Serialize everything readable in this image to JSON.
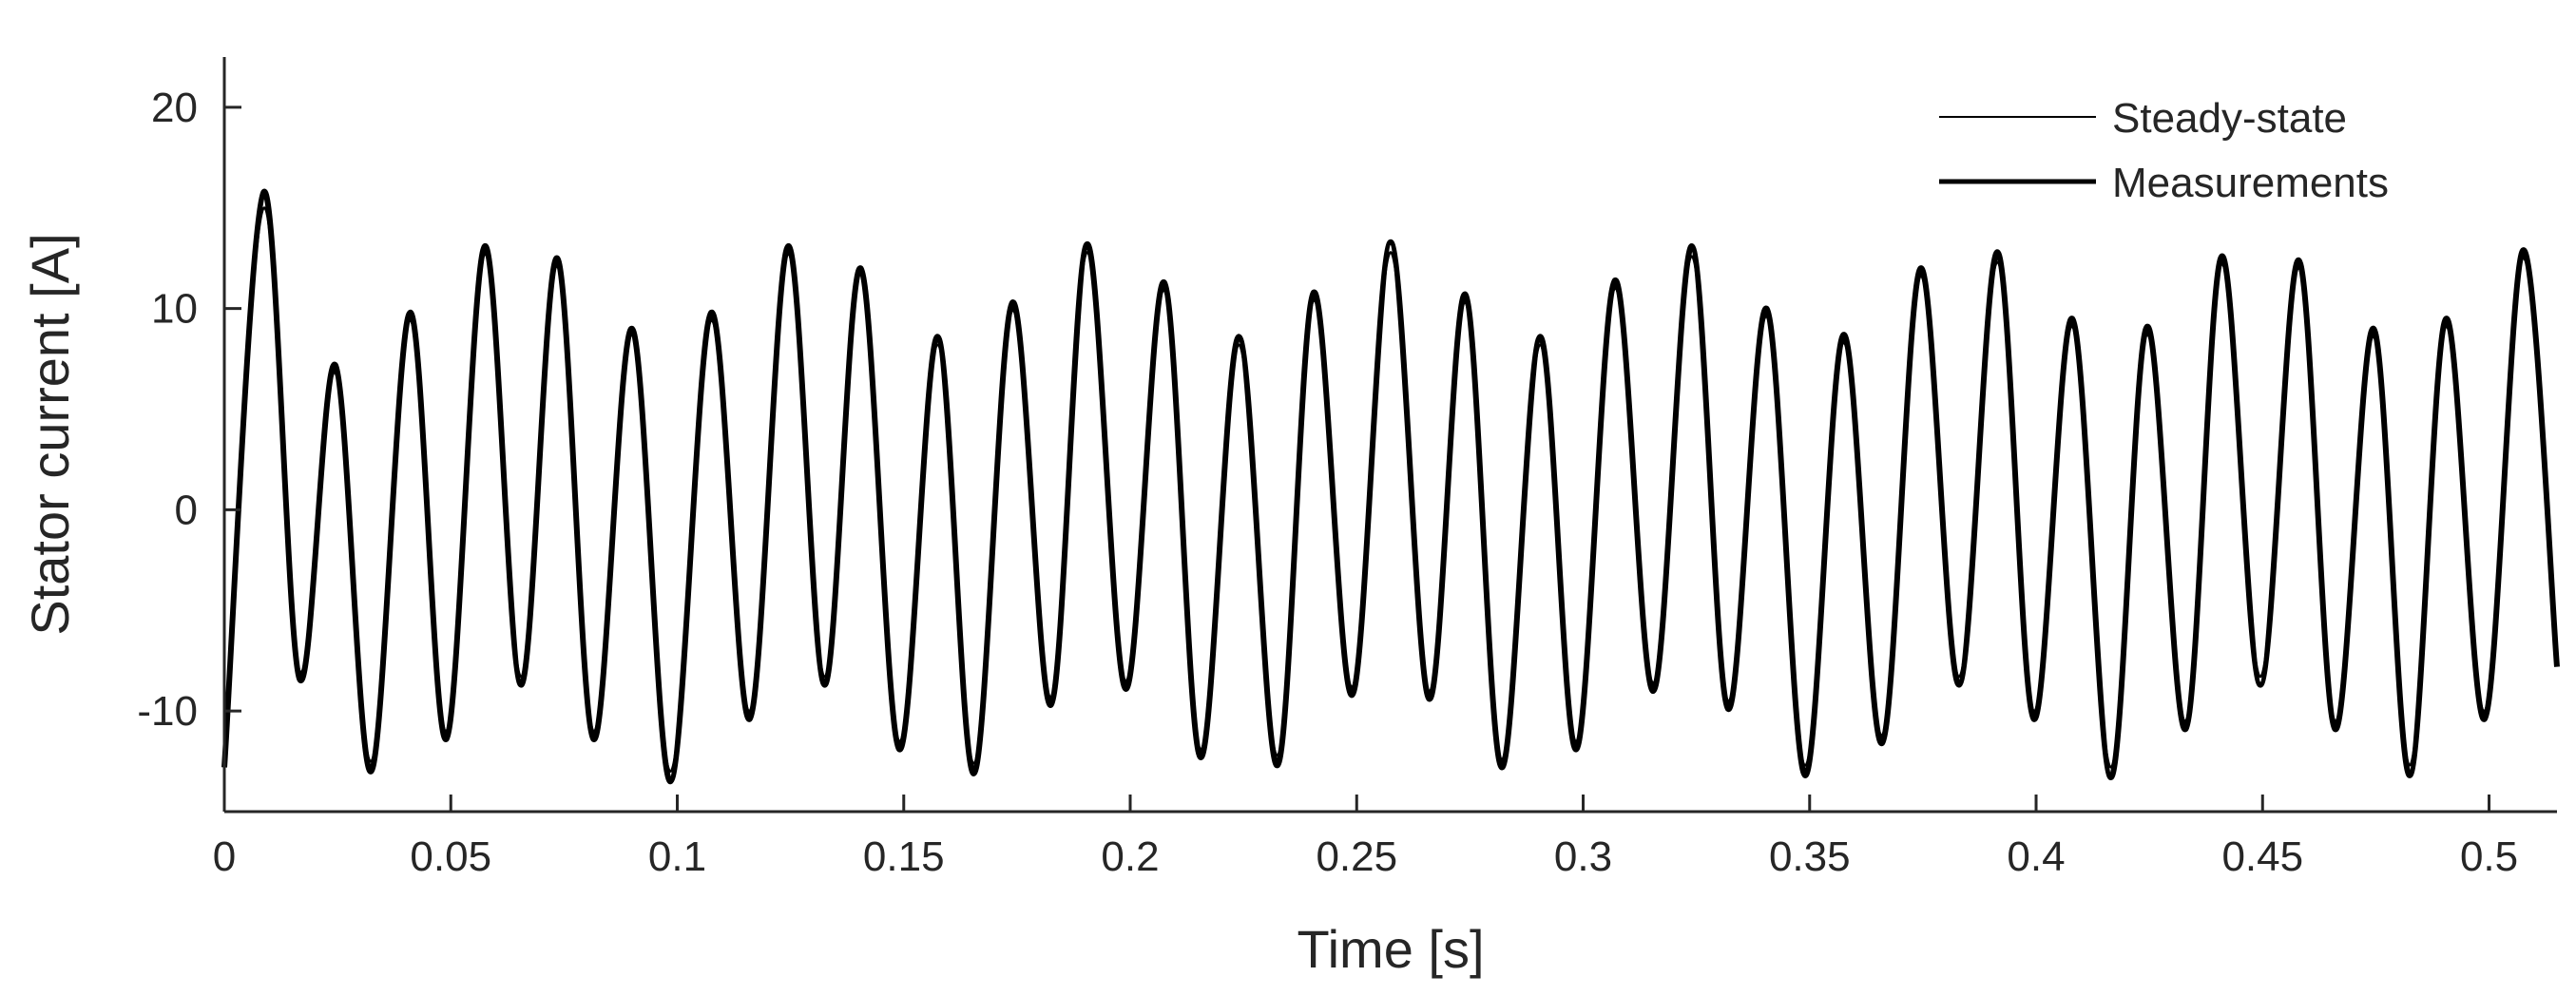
{
  "chart_data": {
    "type": "line",
    "title": "",
    "xlabel": "Time [s]",
    "ylabel": "Stator current [A]",
    "xlim": [
      0,
      0.515
    ],
    "ylim": [
      -15,
      22.5
    ],
    "x_ticks": [
      0,
      0.05,
      0.1,
      0.15,
      0.2,
      0.25,
      0.3,
      0.35,
      0.4,
      0.45,
      0.5
    ],
    "x_tick_labels": [
      "0",
      "0.05",
      "0.1",
      "0.15",
      "0.2",
      "0.25",
      "0.3",
      "0.35",
      "0.4",
      "0.45",
      "0.5"
    ],
    "y_ticks": [
      -10,
      0,
      10,
      20
    ],
    "y_tick_labels": [
      "-10",
      "0",
      "10",
      "20"
    ],
    "grid": false,
    "legend_position": "top-right",
    "series": [
      {
        "name": "Steady-state",
        "style": "thin",
        "color": "#000000",
        "points": [
          [
            0.0,
            -12.3
          ],
          [
            0.0087,
            15.0
          ],
          [
            0.0166,
            -8.0
          ],
          [
            0.0245,
            6.8
          ],
          [
            0.0324,
            -12.5
          ],
          [
            0.041,
            9.4
          ],
          [
            0.049,
            -11.0
          ],
          [
            0.0575,
            12.7
          ],
          [
            0.0655,
            -8.3
          ],
          [
            0.0735,
            12.1
          ],
          [
            0.0815,
            -11.0
          ],
          [
            0.09,
            8.7
          ],
          [
            0.0985,
            -13.0
          ],
          [
            0.1075,
            9.4
          ],
          [
            0.116,
            -10.0
          ],
          [
            0.1245,
            12.7
          ],
          [
            0.1325,
            -8.3
          ],
          [
            0.1405,
            11.7
          ],
          [
            0.149,
            -11.5
          ],
          [
            0.1575,
            8.2
          ],
          [
            0.1655,
            -12.6
          ],
          [
            0.174,
            9.9
          ],
          [
            0.1825,
            -9.3
          ],
          [
            0.1905,
            12.8
          ],
          [
            0.199,
            -8.5
          ],
          [
            0.2075,
            10.9
          ],
          [
            0.2155,
            -11.9
          ],
          [
            0.224,
            8.2
          ],
          [
            0.2325,
            -12.2
          ],
          [
            0.2405,
            10.4
          ],
          [
            0.249,
            -8.8
          ],
          [
            0.2575,
            12.8
          ],
          [
            0.266,
            -9.0
          ],
          [
            0.274,
            10.3
          ],
          [
            0.282,
            -12.4
          ],
          [
            0.2905,
            8.2
          ],
          [
            0.2985,
            -11.5
          ],
          [
            0.307,
            11.0
          ],
          [
            0.3155,
            -8.6
          ],
          [
            0.324,
            12.6
          ],
          [
            0.332,
            -9.5
          ],
          [
            0.3405,
            9.6
          ],
          [
            0.349,
            -12.7
          ],
          [
            0.3575,
            8.3
          ],
          [
            0.366,
            -11.2
          ],
          [
            0.3745,
            11.6
          ],
          [
            0.383,
            -8.3
          ],
          [
            0.3915,
            12.3
          ],
          [
            0.3995,
            -10.0
          ],
          [
            0.408,
            9.1
          ],
          [
            0.4165,
            -12.8
          ],
          [
            0.4245,
            8.7
          ],
          [
            0.433,
            -10.5
          ],
          [
            0.441,
            12.2
          ],
          [
            0.4495,
            -8.3
          ],
          [
            0.458,
            12.0
          ],
          [
            0.466,
            -10.5
          ],
          [
            0.4745,
            8.6
          ],
          [
            0.4825,
            -12.7
          ],
          [
            0.4905,
            9.1
          ],
          [
            0.499,
            -10.0
          ],
          [
            0.5075,
            12.5
          ],
          [
            0.515,
            -7.5
          ]
        ]
      },
      {
        "name": "Measurements",
        "style": "thick",
        "color": "#000000",
        "points": [
          [
            0.0,
            -12.8
          ],
          [
            0.0087,
            15.8
          ],
          [
            0.0166,
            -8.4
          ],
          [
            0.0245,
            7.2
          ],
          [
            0.0324,
            -13.0
          ],
          [
            0.041,
            9.8
          ],
          [
            0.049,
            -11.4
          ],
          [
            0.0575,
            13.1
          ],
          [
            0.0655,
            -8.7
          ],
          [
            0.0735,
            12.5
          ],
          [
            0.0815,
            -11.4
          ],
          [
            0.09,
            9.0
          ],
          [
            0.0985,
            -13.5
          ],
          [
            0.1075,
            9.8
          ],
          [
            0.116,
            -10.4
          ],
          [
            0.1245,
            13.1
          ],
          [
            0.1325,
            -8.7
          ],
          [
            0.1405,
            12.0
          ],
          [
            0.149,
            -11.9
          ],
          [
            0.1575,
            8.6
          ],
          [
            0.1655,
            -13.1
          ],
          [
            0.174,
            10.3
          ],
          [
            0.1825,
            -9.7
          ],
          [
            0.1905,
            13.2
          ],
          [
            0.199,
            -8.9
          ],
          [
            0.2075,
            11.3
          ],
          [
            0.2155,
            -12.3
          ],
          [
            0.224,
            8.6
          ],
          [
            0.2325,
            -12.7
          ],
          [
            0.2405,
            10.8
          ],
          [
            0.249,
            -9.2
          ],
          [
            0.2575,
            13.3
          ],
          [
            0.266,
            -9.4
          ],
          [
            0.274,
            10.7
          ],
          [
            0.282,
            -12.8
          ],
          [
            0.2905,
            8.6
          ],
          [
            0.2985,
            -11.9
          ],
          [
            0.307,
            11.4
          ],
          [
            0.3155,
            -9.0
          ],
          [
            0.324,
            13.1
          ],
          [
            0.332,
            -9.9
          ],
          [
            0.3405,
            10.0
          ],
          [
            0.349,
            -13.2
          ],
          [
            0.3575,
            8.7
          ],
          [
            0.366,
            -11.6
          ],
          [
            0.3745,
            12.0
          ],
          [
            0.383,
            -8.7
          ],
          [
            0.3915,
            12.8
          ],
          [
            0.3995,
            -10.4
          ],
          [
            0.408,
            9.5
          ],
          [
            0.4165,
            -13.3
          ],
          [
            0.4245,
            9.1
          ],
          [
            0.433,
            -10.9
          ],
          [
            0.441,
            12.6
          ],
          [
            0.4495,
            -8.7
          ],
          [
            0.458,
            12.4
          ],
          [
            0.466,
            -10.9
          ],
          [
            0.4745,
            9.0
          ],
          [
            0.4825,
            -13.2
          ],
          [
            0.4905,
            9.5
          ],
          [
            0.499,
            -10.4
          ],
          [
            0.5075,
            12.9
          ],
          [
            0.515,
            -7.8
          ]
        ]
      }
    ]
  }
}
